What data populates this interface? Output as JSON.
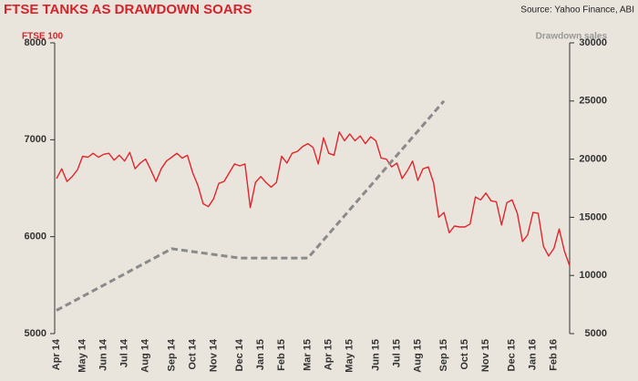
{
  "chart_data": {
    "type": "line",
    "title": "FTSE TANKS AS DRAWDOWN SOARS",
    "source": "Source: Yahoo Finance, ABI",
    "y_label": "FTSE 100",
    "y2_label": "Drawdown sales",
    "categories": [
      "Apr 14",
      null,
      null,
      null,
      null,
      "May 14",
      null,
      null,
      null,
      "Jun 14",
      null,
      null,
      null,
      "Jul 14",
      null,
      null,
      null,
      "Aug 14",
      null,
      null,
      null,
      null,
      "Sep 14",
      null,
      null,
      null,
      "Oct 14",
      null,
      null,
      null,
      "Nov 14",
      null,
      null,
      null,
      null,
      "Dec 14",
      null,
      null,
      null,
      "Jan 15",
      null,
      null,
      null,
      "Feb 15",
      null,
      null,
      null,
      null,
      "Mar 15",
      null,
      null,
      null,
      "Apr 15",
      null,
      null,
      null,
      "May 15",
      null,
      null,
      null,
      null,
      "Jun 15",
      null,
      null,
      null,
      "Jul 15",
      null,
      null,
      null,
      "Aug 15",
      null,
      null,
      null,
      null,
      "Sep 15",
      null,
      null,
      null,
      "Oct 15",
      null,
      null,
      null,
      "Nov 15",
      null,
      null,
      null,
      null,
      "Dec 15",
      null,
      null,
      null,
      "Jan 16",
      null,
      null,
      null,
      "Feb 16",
      null,
      null,
      null
    ],
    "series": [
      {
        "name": "FTSE 100",
        "color": "#e0252c",
        "axis": "y",
        "values": [
          6600,
          6700,
          6570,
          6620,
          6690,
          6830,
          6820,
          6860,
          6820,
          6850,
          6860,
          6790,
          6840,
          6780,
          6870,
          6700,
          6760,
          6800,
          6690,
          6570,
          6700,
          6780,
          6820,
          6860,
          6810,
          6840,
          6660,
          6530,
          6340,
          6310,
          6390,
          6550,
          6570,
          6660,
          6750,
          6730,
          6750,
          6300,
          6560,
          6620,
          6560,
          6510,
          6560,
          6830,
          6760,
          6860,
          6880,
          6930,
          6960,
          6920,
          6750,
          7020,
          6860,
          6840,
          7080,
          6990,
          7060,
          6990,
          7040,
          6960,
          7030,
          6990,
          6810,
          6800,
          6720,
          6760,
          6600,
          6680,
          6780,
          6580,
          6700,
          6720,
          6560,
          6200,
          6250,
          6040,
          6110,
          6100,
          6100,
          6130,
          6410,
          6380,
          6450,
          6370,
          6360,
          6120,
          6350,
          6380,
          6240,
          5950,
          6020,
          6250,
          6240,
          5900,
          5800,
          5880,
          6080,
          5850,
          5700
        ]
      },
      {
        "name": "Drawdown sales",
        "color": "#8a8a8a",
        "axis": "y2",
        "x": [
          "Apr 14",
          "Sep 14",
          "Dec 14",
          "Mar 15",
          "Sep 15"
        ],
        "values": [
          7000,
          12300,
          11500,
          11500,
          25000
        ]
      }
    ],
    "ylim": [
      5000,
      8000
    ],
    "yticks": [
      5000,
      6000,
      7000,
      8000
    ],
    "y2lim": [
      5000,
      30000
    ],
    "y2ticks": [
      5000,
      10000,
      15000,
      20000,
      25000,
      30000
    ]
  }
}
